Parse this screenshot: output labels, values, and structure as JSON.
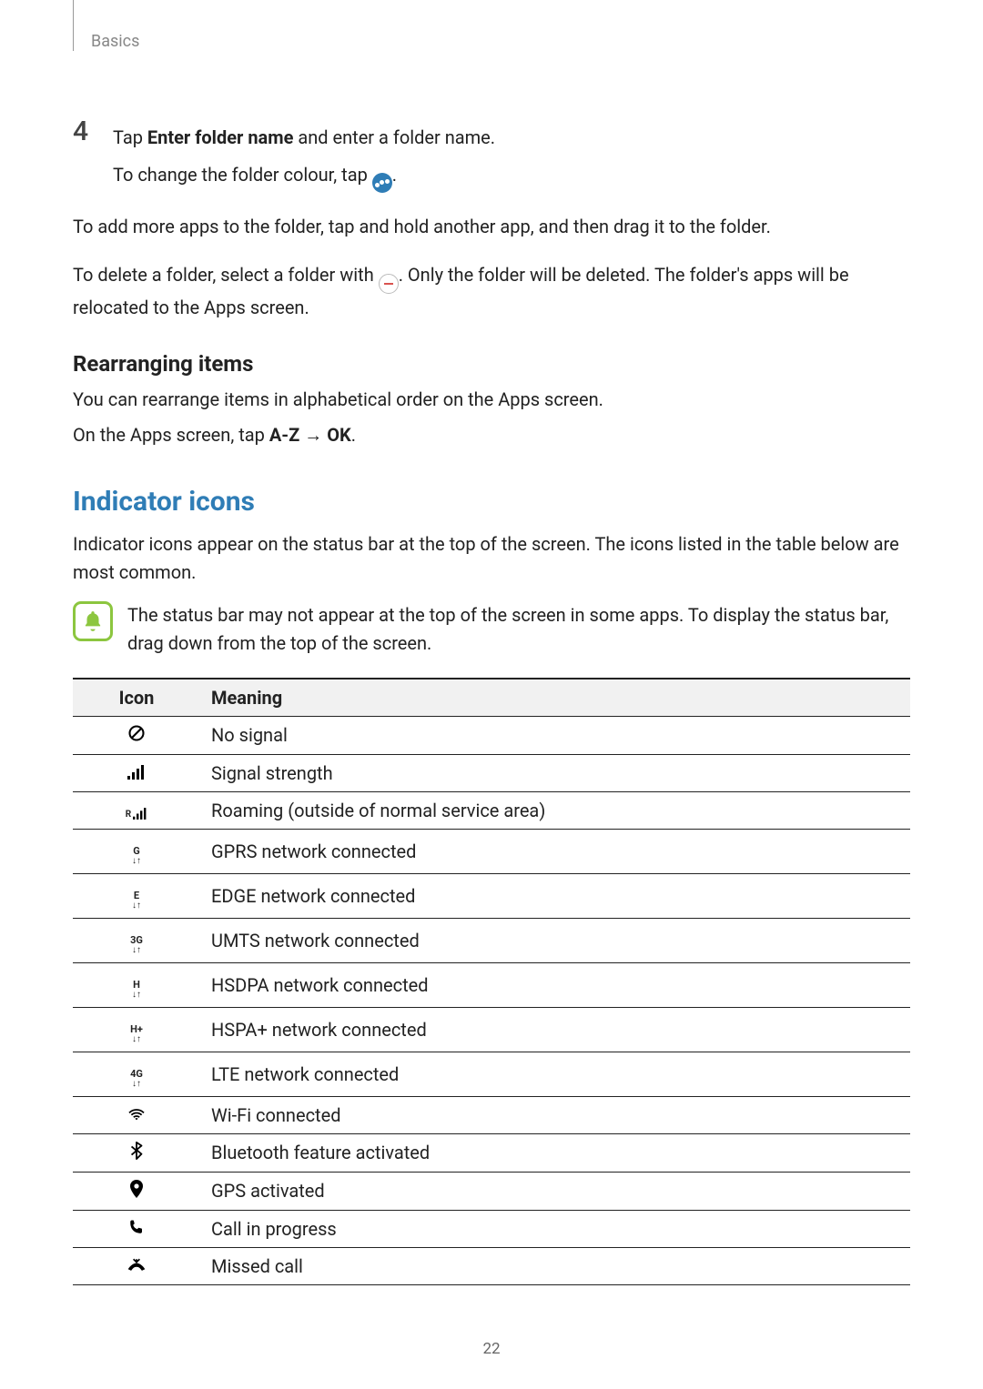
{
  "header": {
    "section": "Basics",
    "page_number": "22"
  },
  "step": {
    "number": "4",
    "line1_pre": "Tap ",
    "line1_bold": "Enter folder name",
    "line1_post": " and enter a folder name.",
    "line2_pre": "To change the folder colour, tap ",
    "line2_post": "."
  },
  "para_add": "To add more apps to the folder, tap and hold another app, and then drag it to the folder.",
  "para_delete_pre": "To delete a folder, select a folder with ",
  "para_delete_post": ". Only the folder will be deleted. The folder's apps will be relocated to the Apps screen.",
  "rearranging": {
    "title": "Rearranging items",
    "p1": "You can rearrange items in alphabetical order on the Apps screen.",
    "p2_pre": "On the Apps screen, tap ",
    "p2_b1": "A-Z",
    "p2_arrow": " → ",
    "p2_b2": "OK",
    "p2_post": "."
  },
  "indicator": {
    "title": "Indicator icons",
    "intro": "Indicator icons appear on the status bar at the top of the screen. The icons listed in the table below are most common.",
    "note": "The status bar may not appear at the top of the screen in some apps. To display the status bar, drag down from the top of the screen.",
    "note_icon_color": "#8cc63f"
  },
  "table": {
    "header_icon": "Icon",
    "header_meaning": "Meaning",
    "rows": [
      {
        "icon_type": "no-signal",
        "meaning": "No signal"
      },
      {
        "icon_type": "signal",
        "meaning": "Signal strength"
      },
      {
        "icon_type": "roaming",
        "meaning": "Roaming (outside of normal service area)"
      },
      {
        "icon_type": "net",
        "label": "G",
        "meaning": "GPRS network connected"
      },
      {
        "icon_type": "net",
        "label": "E",
        "meaning": "EDGE network connected"
      },
      {
        "icon_type": "net",
        "label": "3G",
        "meaning": "UMTS network connected"
      },
      {
        "icon_type": "net",
        "label": "H",
        "meaning": "HSDPA network connected"
      },
      {
        "icon_type": "net",
        "label": "H+",
        "meaning": "HSPA+ network connected"
      },
      {
        "icon_type": "net",
        "label": "4G",
        "meaning": "LTE network connected"
      },
      {
        "icon_type": "wifi",
        "meaning": "Wi-Fi connected"
      },
      {
        "icon_type": "bluetooth",
        "meaning": "Bluetooth feature activated"
      },
      {
        "icon_type": "gps",
        "meaning": "GPS activated"
      },
      {
        "icon_type": "call",
        "meaning": "Call in progress"
      },
      {
        "icon_type": "missed",
        "meaning": "Missed call"
      }
    ]
  }
}
